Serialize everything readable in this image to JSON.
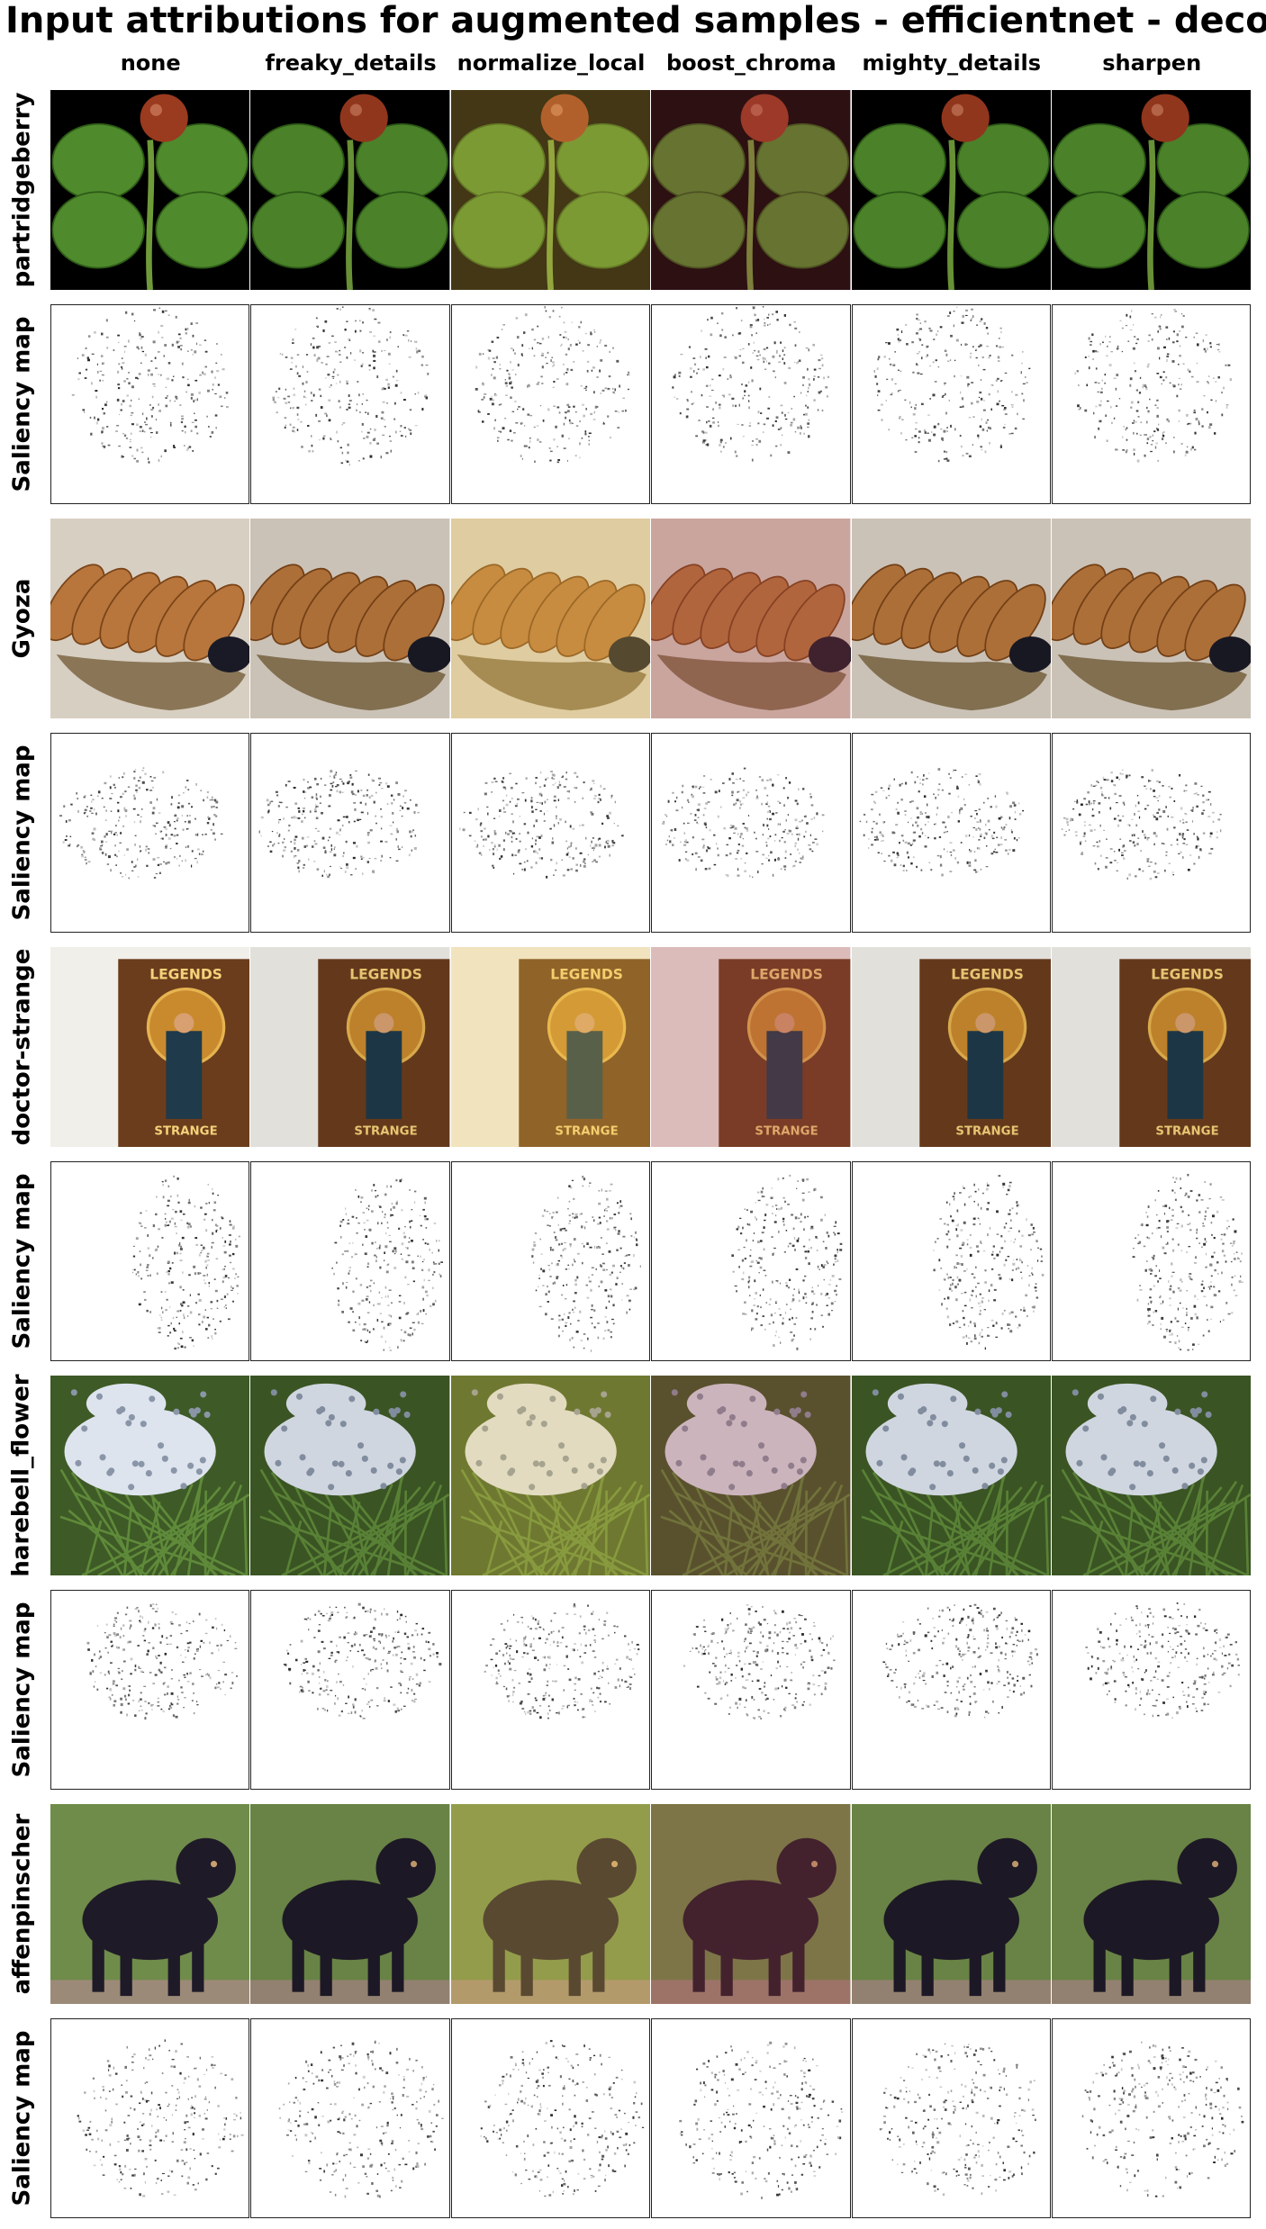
{
  "title": "Input attributions for augmented samples - efficientnet - deconv",
  "columns": [
    "none",
    "freaky_details",
    "normalize_local",
    "boost_chroma",
    "mighty_details",
    "sharpen"
  ],
  "rows": [
    {
      "label": "partridgeberry",
      "kind": "image",
      "subject": "partridgeberry"
    },
    {
      "label": "Saliency map",
      "kind": "saliency",
      "subject": "partridgeberry"
    },
    {
      "label": "Gyoza",
      "kind": "image",
      "subject": "gyoza"
    },
    {
      "label": "Saliency map",
      "kind": "saliency",
      "subject": "gyoza"
    },
    {
      "label": "doctor-strange",
      "kind": "image",
      "subject": "doctor-strange"
    },
    {
      "label": "Saliency map",
      "kind": "saliency",
      "subject": "doctor-strange"
    },
    {
      "label": "harebell_flower",
      "kind": "image",
      "subject": "harebell_flower"
    },
    {
      "label": "Saliency map",
      "kind": "saliency",
      "subject": "harebell_flower"
    },
    {
      "label": "affenpinscher",
      "kind": "image",
      "subject": "affenpinscher"
    },
    {
      "label": "Saliency map",
      "kind": "saliency",
      "subject": "affenpinscher"
    }
  ],
  "box_text": {
    "legends": "LEGENDS",
    "strange": "STRANGE"
  },
  "colors": {
    "leaf": "#4f8a2c",
    "berry": "#9a3a1f",
    "plant_bg": "#000000",
    "gyoza": "#b8763c",
    "plate": "#8a7656",
    "gyoza_bg": "#d8cfc3",
    "box": "#6b3d1d",
    "box_bg": "#f1efe9",
    "flower": "#dde4ee",
    "foliage": "#3e5a26",
    "dog": "#1f1a28",
    "dog_bg": "#6f8c4a"
  },
  "variant_tints": {
    "none": "none",
    "freaky_details": "none",
    "normalize_local": "#f2c64a",
    "boost_chroma": "#a03a40",
    "mighty_details": "none",
    "sharpen": "none"
  }
}
